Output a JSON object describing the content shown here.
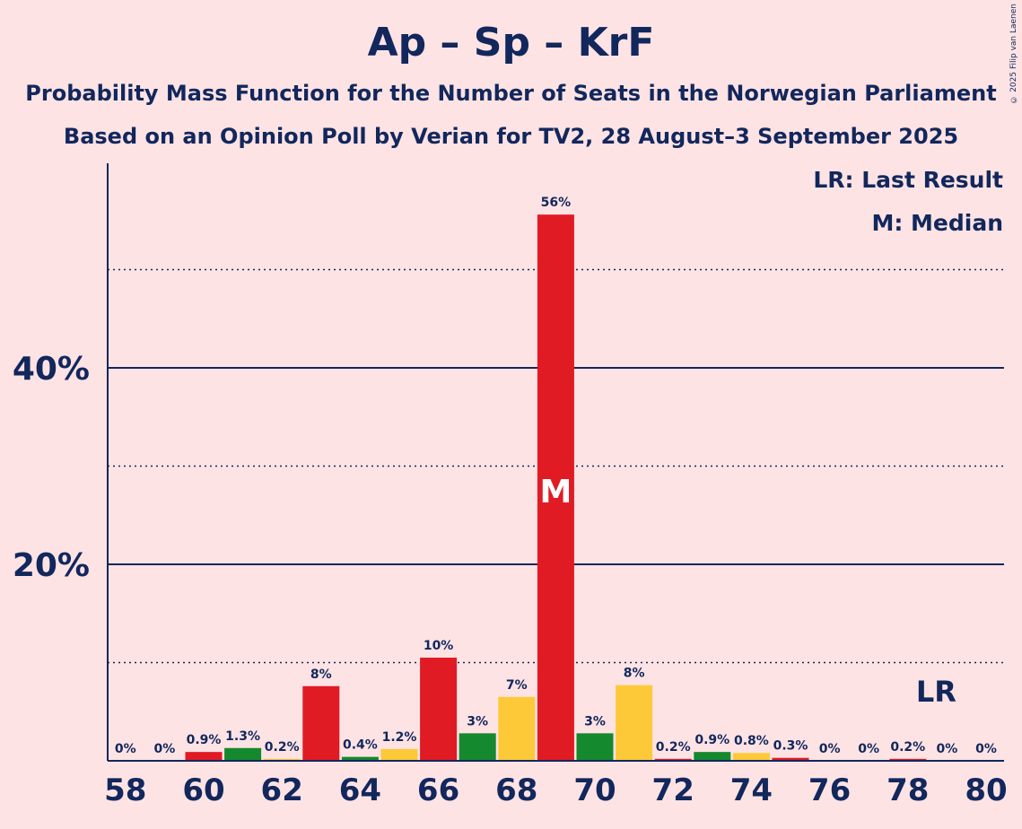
{
  "title": "Ap – Sp – KrF",
  "subtitle_1": "Probability Mass Function for the Number of Seats in the Norwegian Parliament",
  "subtitle_2": "Based on an Opinion Poll by Verian for TV2, 28 August–3 September 2025",
  "copyright": "© 2025 Filip van Laenen",
  "legend": {
    "last_result": "LR: Last Result",
    "median": "M: Median"
  },
  "colors": {
    "red": "#e01b24",
    "green": "#14892e",
    "yellow": "#fdc939",
    "axis": "#12275c",
    "background": "#fde3e4"
  },
  "chart_data": {
    "type": "bar",
    "title": "Ap – Sp – KrF",
    "xlabel": "",
    "ylabel": "",
    "ylim": [
      0,
      60
    ],
    "y_ticks": [
      {
        "value": 20,
        "label": "20%",
        "style": "solid"
      },
      {
        "value": 40,
        "label": "40%",
        "style": "solid"
      }
    ],
    "y_gridlines_dotted": [
      10,
      30,
      50
    ],
    "x_tick_labels": [
      "58",
      "60",
      "62",
      "64",
      "66",
      "68",
      "70",
      "72",
      "74",
      "76",
      "78",
      "80"
    ],
    "x": [
      58,
      59,
      60,
      61,
      62,
      63,
      64,
      65,
      66,
      67,
      68,
      69,
      70,
      71,
      72,
      73,
      74,
      75,
      76,
      77,
      78,
      79,
      80
    ],
    "values": [
      0,
      0,
      0.9,
      1.3,
      0.2,
      7.6,
      0.4,
      1.2,
      10.5,
      2.8,
      6.5,
      55.6,
      2.8,
      7.7,
      0.2,
      0.9,
      0.8,
      0.3,
      0,
      0,
      0.2,
      0,
      0
    ],
    "labels": [
      "0%",
      "0%",
      "0.9%",
      "1.3%",
      "0.2%",
      "8%",
      "0.4%",
      "1.2%",
      "10%",
      "3%",
      "7%",
      "56%",
      "3%",
      "8%",
      "0.2%",
      "0.9%",
      "0.8%",
      "0.3%",
      "0%",
      "0%",
      "0.2%",
      "0%",
      "0%"
    ],
    "bar_colors": [
      "red",
      "green",
      "red",
      "green",
      "yellow",
      "red",
      "green",
      "yellow",
      "red",
      "green",
      "yellow",
      "red",
      "green",
      "yellow",
      "red",
      "green",
      "yellow",
      "red",
      "green",
      "yellow",
      "red",
      "green",
      "yellow"
    ],
    "median": {
      "seat": 69,
      "marker": "M"
    },
    "last_result": {
      "seat": 79,
      "marker": "LR"
    },
    "legend_placement": "top-right"
  }
}
